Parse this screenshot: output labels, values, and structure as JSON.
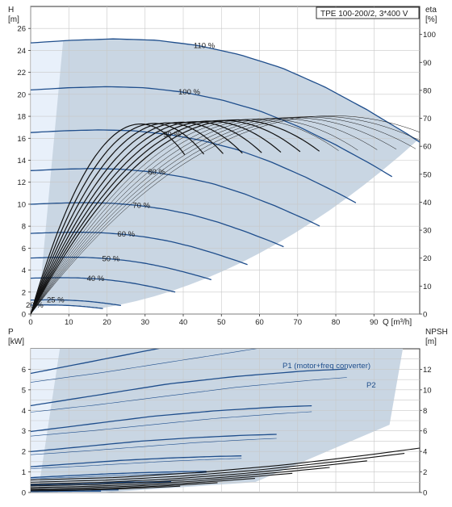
{
  "chart_data": [
    {
      "type": "line",
      "title": "TPE 100-200/2, 3*400 V",
      "xlabel": "Q [m³/h]",
      "ylabel_unit": "[m]",
      "ylabel_name": "H",
      "y2label_name": "eta",
      "y2label_unit": "[%]",
      "xlim": [
        0,
        102
      ],
      "ylim": [
        0,
        28
      ],
      "y2lim": [
        0,
        110
      ],
      "x_ticks": [
        "0",
        "10",
        "20",
        "30",
        "40",
        "50",
        "60",
        "70",
        "80",
        "90"
      ],
      "y_ticks": [
        "0",
        "2",
        "4",
        "6",
        "8",
        "10",
        "12",
        "14",
        "16",
        "18",
        "20",
        "22",
        "24",
        "26"
      ],
      "y2_ticks": [
        "0",
        "10",
        "20",
        "30",
        "40",
        "50",
        "60",
        "70",
        "80",
        "90",
        "100"
      ],
      "grid": true,
      "speed_labels": [
        "110 %",
        "100 %",
        "90 %",
        "80 %",
        "70 %",
        "60 %",
        "50 %",
        "40 %",
        "25 %",
        "20 %"
      ],
      "speed_curves": [
        {
          "name": "110 %",
          "speed": 1.1
        },
        {
          "name": "100 %",
          "speed": 1.0
        },
        {
          "name": "90 %",
          "speed": 0.9
        },
        {
          "name": "80 %",
          "speed": 0.8
        },
        {
          "name": "70 %",
          "speed": 0.7
        },
        {
          "name": "60 %",
          "speed": 0.6
        },
        {
          "name": "50 %",
          "speed": 0.5
        },
        {
          "name": "40 %",
          "speed": 0.4
        },
        {
          "name": "25 %",
          "speed": 0.25
        },
        {
          "name": "20 %",
          "speed": 0.2
        }
      ],
      "base_curve_q": [
        0,
        10,
        20,
        30,
        40,
        50,
        60,
        70,
        80,
        90,
        100
      ],
      "base_curve_h": [
        20.4,
        20.6,
        20.7,
        20.6,
        20.2,
        19.5,
        18.5,
        17.1,
        15.4,
        13.5,
        11.4
      ],
      "max_flow_at_full_speed": 98,
      "eta_peak_flow": 72,
      "eta_peak_percent": 70.5
    },
    {
      "type": "line",
      "xlabel": "",
      "ylabel_name": "P",
      "ylabel_unit": "[kW]",
      "y2label_name": "NPSH",
      "y2label_unit": "[m]",
      "xlim": [
        0,
        102
      ],
      "ylim": [
        0,
        7
      ],
      "y2lim": [
        0,
        14
      ],
      "y_ticks": [
        "0",
        "1",
        "2",
        "3",
        "4",
        "5",
        "6"
      ],
      "y2_ticks": [
        "0",
        "2",
        "4",
        "6",
        "8",
        "10",
        "12"
      ],
      "grid": true,
      "series_labels": [
        "P1 (motor+freq converter)",
        "P2"
      ],
      "p1_full_speed": {
        "q": [
          0,
          20,
          40,
          60,
          80,
          100
        ],
        "p": [
          4.0,
          4.5,
          5.0,
          5.35,
          5.6,
          5.75
        ]
      },
      "p2_full_speed": {
        "q": [
          0,
          20,
          40,
          60,
          80,
          100
        ],
        "p": [
          3.7,
          4.05,
          4.45,
          4.85,
          5.15,
          5.4
        ]
      },
      "npsh": {
        "q": [
          0,
          20,
          40,
          60,
          80,
          100
        ],
        "npsh": [
          1.0,
          1.2,
          1.6,
          2.2,
          3.0,
          3.9
        ]
      }
    }
  ],
  "colors": {
    "grid": "#c8c8c8",
    "region_fill": "#c9d6e3",
    "region_fill_light": "#e8f0fa",
    "curve_blue": "#1f4e8c",
    "eta_dark": "#111111",
    "axis": "#333333"
  }
}
